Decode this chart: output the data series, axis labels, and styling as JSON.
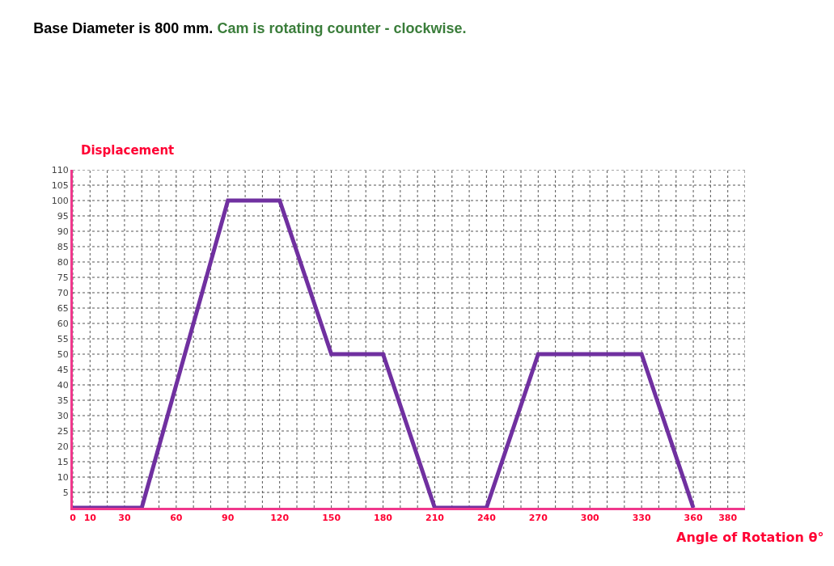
{
  "chart_data": {
    "type": "line",
    "title": "Base Diameter is 800 mm.",
    "subtitle": "Cam is rotating counter - clockwise.",
    "xlabel": "Angle of Rotation θ°",
    "ylabel": "Displacement",
    "series": [
      {
        "color": "#7030a0",
        "x": [
          0,
          40,
          90,
          120,
          150,
          180,
          210,
          240,
          270,
          330,
          360
        ],
        "values": [
          0,
          0,
          100,
          100,
          50,
          50,
          0,
          0,
          50,
          50,
          0
        ]
      }
    ],
    "xlim": [
      0,
      390
    ],
    "ylim": [
      0,
      110
    ],
    "xticks": [
      0,
      10,
      {
        "value": 20,
        "label": null
      },
      30,
      {
        "value": 40,
        "label": null
      },
      {
        "value": 50,
        "label": null
      },
      60,
      {
        "value": 70,
        "label": null
      },
      {
        "value": 80,
        "label": null
      },
      90,
      {
        "value": 100,
        "label": null
      },
      {
        "value": 110,
        "label": null
      },
      120,
      {
        "value": 130,
        "label": null
      },
      {
        "value": 140,
        "label": null
      },
      150,
      {
        "value": 160,
        "label": null
      },
      {
        "value": 170,
        "label": null
      },
      180,
      {
        "value": 190,
        "label": null
      },
      {
        "value": 200,
        "label": null
      },
      210,
      {
        "value": 220,
        "label": null
      },
      {
        "value": 230,
        "label": null
      },
      240,
      {
        "value": 250,
        "label": null
      },
      {
        "value": 260,
        "label": null
      },
      270,
      {
        "value": 280,
        "label": null
      },
      {
        "value": 290,
        "label": null
      },
      300,
      {
        "value": 310,
        "label": null
      },
      {
        "value": 320,
        "label": null
      },
      330,
      {
        "value": 340,
        "label": null
      },
      {
        "value": 350,
        "label": null
      },
      360,
      {
        "value": 370,
        "label": null
      },
      380,
      {
        "value": 390,
        "label": null
      }
    ],
    "yticks": [
      5,
      10,
      15,
      20,
      25,
      30,
      35,
      40,
      45,
      50,
      55,
      60,
      65,
      70,
      75,
      80,
      85,
      90,
      95,
      100,
      105,
      110
    ],
    "grid": true,
    "marker": "none",
    "line_style": "solid"
  }
}
